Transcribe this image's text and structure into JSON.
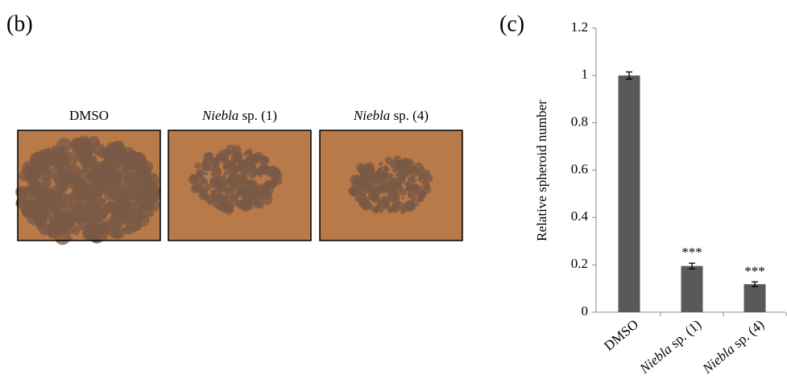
{
  "panel_b": {
    "label": "(b)",
    "images": [
      {
        "caption": "DMSO",
        "italic_first_word": false
      },
      {
        "caption": "Niebla sp. (1)",
        "italic_first_word": true
      },
      {
        "caption": "Niebla sp. (4)",
        "italic_first_word": true
      }
    ]
  },
  "chart_data": {
    "type": "bar",
    "panel_label": "(c)",
    "y_label": "Relative spheroid number",
    "categories": [
      "DMSO",
      "Niebla sp. (1)",
      "Niebla sp. (4)"
    ],
    "category_italic_first_word": [
      false,
      true,
      true
    ],
    "values": [
      1.0,
      0.195,
      0.118
    ],
    "errors": [
      0.015,
      0.012,
      0.01
    ],
    "significance": [
      null,
      "***",
      "***"
    ],
    "color": "#595959",
    "ylim": [
      0,
      1.2
    ],
    "yticks": [
      0,
      0.2,
      0.4,
      0.6,
      0.8,
      1,
      1.2
    ],
    "grid": false
  }
}
